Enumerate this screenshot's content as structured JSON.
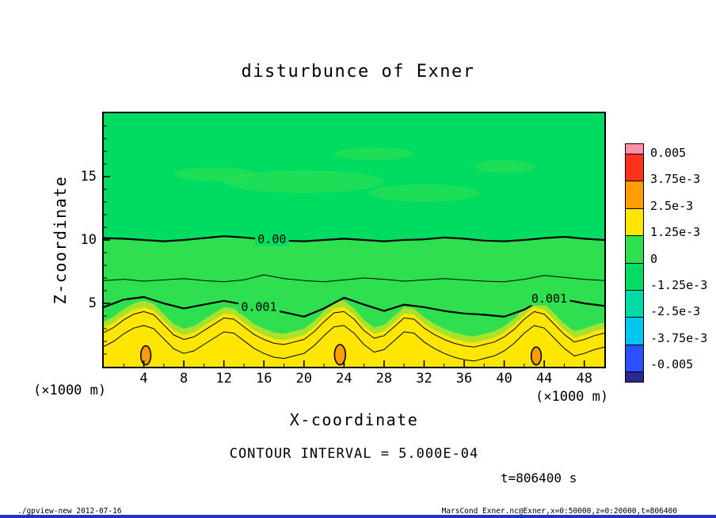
{
  "title": "disturbunce of Exner",
  "axes": {
    "x": {
      "label": "X-coordinate",
      "unit": "(×1000 m)",
      "min": 0,
      "max": 50,
      "major_ticks": [
        4,
        8,
        12,
        16,
        20,
        24,
        28,
        32,
        36,
        40,
        44,
        48
      ],
      "minor_step": 2
    },
    "z": {
      "label": "Z-coordinate",
      "unit": "(×1000 m)",
      "min": 0,
      "max": 20,
      "major_ticks": [
        5,
        10,
        15
      ],
      "minor_step": 1
    }
  },
  "colorbar": {
    "boundary_labels": [
      "0.005",
      "3.75e-3",
      "2.5e-3",
      "1.25e-3",
      "0",
      "-1.25e-3",
      "-2.5e-3",
      "-3.75e-3",
      "-0.005"
    ],
    "band_colors": [
      "#ff90a8",
      "#ff321e",
      "#ff9c00",
      "#ffe600",
      "#2edf50",
      "#00dc62",
      "#00d9a8",
      "#00c6f0",
      "#2b50ff",
      "#28288e"
    ]
  },
  "annotations": {
    "contour_interval": "CONTOUR INTERVAL = 5.000E-04",
    "time_label": "t=806400 s"
  },
  "footer": {
    "left": "./gpview-new  2012-07-16",
    "right": "MarsCond_Exner.nc@Exner,x=0:50000,z=0:20000,t=806400"
  },
  "chart_data": {
    "type": "filled-contour",
    "title": "disturbunce of Exner",
    "xlabel": "X-coordinate (×1000 m)",
    "ylabel": "Z-coordinate (×1000 m)",
    "xlim": [
      0,
      50
    ],
    "ylim": [
      0,
      20
    ],
    "contour_interval": 0.0005,
    "colorbar_levels": [
      0.005,
      0.00375,
      0.0025,
      0.00125,
      0,
      -0.00125,
      -0.0025,
      -0.00375,
      -0.005
    ],
    "colors": {
      "bg_band": "#00dc62",
      "pos_band": "#2edf50",
      "fringe_band": "#a8e22c",
      "yellow_band": "#ffe600",
      "blob_band": "#ff9c00"
    },
    "boundaries": {
      "zero": {
        "level": 0.0,
        "x_step": 2,
        "z": [
          10.15,
          10.1,
          10.0,
          9.9,
          10.0,
          10.15,
          10.3,
          10.2,
          10.05,
          9.95,
          9.9,
          10.0,
          10.1,
          10.0,
          9.9,
          10.0,
          10.05,
          10.2,
          10.1,
          9.95,
          9.9,
          10.0,
          10.15,
          10.25,
          10.1,
          10.0
        ]
      },
      "half": {
        "level": 0.0005,
        "x_step": 2,
        "z": [
          6.8,
          6.9,
          6.75,
          6.85,
          6.95,
          6.8,
          6.7,
          6.85,
          7.25,
          6.95,
          6.8,
          6.7,
          6.85,
          7.0,
          6.9,
          6.75,
          6.85,
          6.95,
          6.85,
          6.75,
          6.7,
          6.9,
          7.2,
          7.05,
          6.9,
          6.8
        ]
      },
      "one": {
        "level": 0.001,
        "x_step": 2,
        "z": [
          4.7,
          5.3,
          5.5,
          5.0,
          4.6,
          4.9,
          5.2,
          4.9,
          4.6,
          4.3,
          3.95,
          4.6,
          5.45,
          4.9,
          4.4,
          4.9,
          4.7,
          4.4,
          4.2,
          4.1,
          3.95,
          4.5,
          5.45,
          5.3,
          5.0,
          4.8
        ]
      },
      "fringe": {
        "level": 0.00115,
        "x_step": 1,
        "z": [
          3.55,
          3.95,
          4.55,
          5.0,
          5.2,
          4.95,
          4.15,
          3.35,
          3.0,
          3.2,
          3.7,
          4.2,
          4.7,
          4.6,
          4.0,
          3.4,
          3.0,
          2.7,
          2.6,
          2.8,
          3.0,
          3.6,
          4.4,
          5.1,
          5.2,
          4.6,
          3.7,
          3.1,
          3.3,
          4.0,
          4.7,
          4.6,
          3.9,
          3.4,
          3.0,
          2.7,
          2.5,
          2.4,
          2.6,
          2.8,
          3.2,
          3.8,
          4.6,
          5.2,
          5.0,
          4.2,
          3.4,
          2.8,
          3.0,
          3.3,
          3.5
        ]
      },
      "band125": {
        "level": 0.00125,
        "x_step": 1,
        "z": [
          3.05,
          3.45,
          4.05,
          4.5,
          4.7,
          4.45,
          3.65,
          2.85,
          2.5,
          2.7,
          3.2,
          3.7,
          4.2,
          4.1,
          3.5,
          2.9,
          2.5,
          2.2,
          2.1,
          2.3,
          2.5,
          3.1,
          3.9,
          4.6,
          4.7,
          4.1,
          3.2,
          2.6,
          2.8,
          3.5,
          4.2,
          4.1,
          3.4,
          2.9,
          2.5,
          2.2,
          2.0,
          1.9,
          2.1,
          2.3,
          2.7,
          3.3,
          4.1,
          4.7,
          4.5,
          3.7,
          2.9,
          2.3,
          2.5,
          2.8,
          3.0
        ]
      },
      "onefive": {
        "level": 0.0015,
        "x_step": 1,
        "z": [
          2.7,
          3.1,
          3.7,
          4.15,
          4.35,
          4.1,
          3.3,
          2.5,
          2.15,
          2.35,
          2.85,
          3.35,
          3.85,
          3.75,
          3.15,
          2.55,
          2.15,
          1.85,
          1.75,
          1.95,
          2.15,
          2.75,
          3.55,
          4.25,
          4.35,
          3.75,
          2.85,
          2.25,
          2.45,
          3.15,
          3.85,
          3.75,
          3.05,
          2.55,
          2.15,
          1.85,
          1.65,
          1.55,
          1.75,
          1.95,
          2.35,
          2.95,
          3.75,
          4.35,
          4.15,
          3.35,
          2.55,
          1.95,
          2.15,
          2.45,
          2.65
        ]
      },
      "two": {
        "level": 0.002,
        "x_step": 1,
        "z": [
          1.6,
          2.0,
          2.6,
          3.05,
          3.25,
          3.0,
          2.2,
          1.4,
          1.05,
          1.25,
          1.75,
          2.25,
          2.75,
          2.65,
          2.05,
          1.45,
          1.05,
          0.75,
          0.65,
          0.85,
          1.05,
          1.65,
          2.45,
          3.15,
          3.25,
          2.65,
          1.75,
          1.15,
          1.35,
          2.05,
          2.75,
          2.65,
          1.95,
          1.45,
          1.05,
          0.75,
          0.55,
          0.45,
          0.65,
          0.85,
          1.25,
          1.85,
          2.65,
          3.25,
          3.05,
          2.25,
          1.45,
          0.85,
          1.05,
          1.35,
          1.55
        ]
      }
    },
    "line_styles": [
      {
        "boundary": "zero",
        "width": 2.2
      },
      {
        "boundary": "half",
        "width": 1.0
      },
      {
        "boundary": "one",
        "width": 2.2
      },
      {
        "boundary": "onefive",
        "width": 1.0
      },
      {
        "boundary": "two",
        "width": 1.0
      }
    ],
    "contour_labels": [
      {
        "text": "0.00",
        "x": 16.8,
        "z": 10.1,
        "bg": "bg_band"
      },
      {
        "text": "0.001",
        "x": 15.5,
        "z": 4.75,
        "bg": "pos_band"
      },
      {
        "text": "0.001",
        "x": 44.5,
        "z": 5.4,
        "bg": "pos_band"
      }
    ],
    "blobs": [
      {
        "cx": 4.2,
        "cz": 0.9,
        "rx": 0.5,
        "rz": 0.75
      },
      {
        "cx": 23.6,
        "cz": 0.95,
        "rx": 0.55,
        "rz": 0.8
      },
      {
        "cx": 43.2,
        "cz": 0.85,
        "rx": 0.5,
        "rz": 0.7
      }
    ],
    "patches": [
      {
        "cx": 20,
        "cz": 14.6,
        "rx": 8,
        "rz": 0.9
      },
      {
        "cx": 32,
        "cz": 13.7,
        "rx": 5.5,
        "rz": 0.7
      },
      {
        "cx": 11,
        "cz": 15.2,
        "rx": 4,
        "rz": 0.55
      },
      {
        "cx": 40,
        "cz": 15.8,
        "rx": 3,
        "rz": 0.5
      },
      {
        "cx": 27,
        "cz": 16.8,
        "rx": 4,
        "rz": 0.5
      }
    ]
  }
}
